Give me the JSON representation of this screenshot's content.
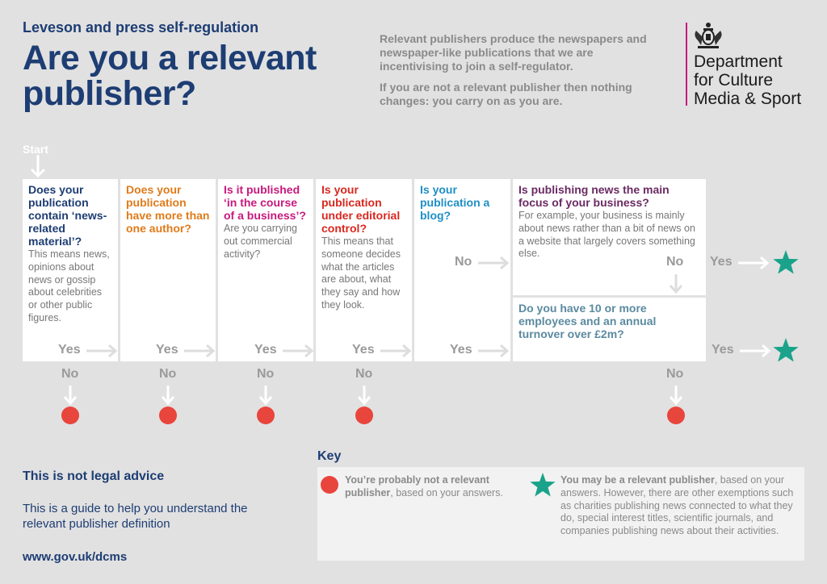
{
  "header": {
    "subtitle": "Leveson and press self-regulation",
    "title": "Are you a relevant publisher?",
    "intro_p1": "Relevant publishers produce the newspapers and newspaper-like publications that we are incentivising to join a self-regulator.",
    "intro_p2": "If you are not a relevant publisher then nothing changes: you carry on as you are."
  },
  "dept": {
    "line1": "Department",
    "line2": "for Culture",
    "line3": "Media & Sport",
    "accent_color": "#c8197d",
    "logo_icon": "royal-crest-icon"
  },
  "flow": {
    "start_label": "Start",
    "yes": "Yes",
    "no": "No",
    "q1": {
      "question": "Does your publication contain ‘news-related material’?",
      "detail": "This means news, opinions about news or gossip about celebrities or other public figures.",
      "color": "#1d3d73"
    },
    "q2": {
      "question": "Does your publication have more than one author?",
      "detail": "",
      "color": "#e07b1a"
    },
    "q3": {
      "question": "Is it published ‘in the course of a business’?",
      "detail": "Are you carrying out commercial activity?",
      "color": "#c8197d"
    },
    "q4": {
      "question": "Is your publication under editorial control?",
      "detail": "This means that someone decides what the articles are about, what they say and how they look.",
      "color": "#d9281f"
    },
    "q5": {
      "question": "Is your publication a blog?",
      "detail": "",
      "color": "#1e8fc6"
    },
    "q6": {
      "question": "Is publishing news the main focus of your business?",
      "detail": "For example, your business is mainly about news rather than a bit of news on a website that largely covers something else.",
      "color": "#6b2a63"
    },
    "q7": {
      "question": "Do you have 10 or more employees and an annual turnover over £2m?",
      "detail": "",
      "color": "#5b8aa0"
    }
  },
  "legal": {
    "title": "This is not legal advice",
    "text": "This is a guide to help you understand the relevant publisher definition",
    "url": "www.gov.uk/dcms"
  },
  "key": {
    "title": "Key",
    "red_bold": "You’re probably not a relevant publisher",
    "red_rest": ", based on your answers.",
    "green_bold": "You may be a relevant publisher",
    "green_rest": ", based on your answers. However, there are other exemptions such as charities publishing news connected to what they do, special interest titles, scientific journals, and companies publishing news about their activities.",
    "red_color": "#e8453c",
    "green_color": "#1aa38a"
  }
}
